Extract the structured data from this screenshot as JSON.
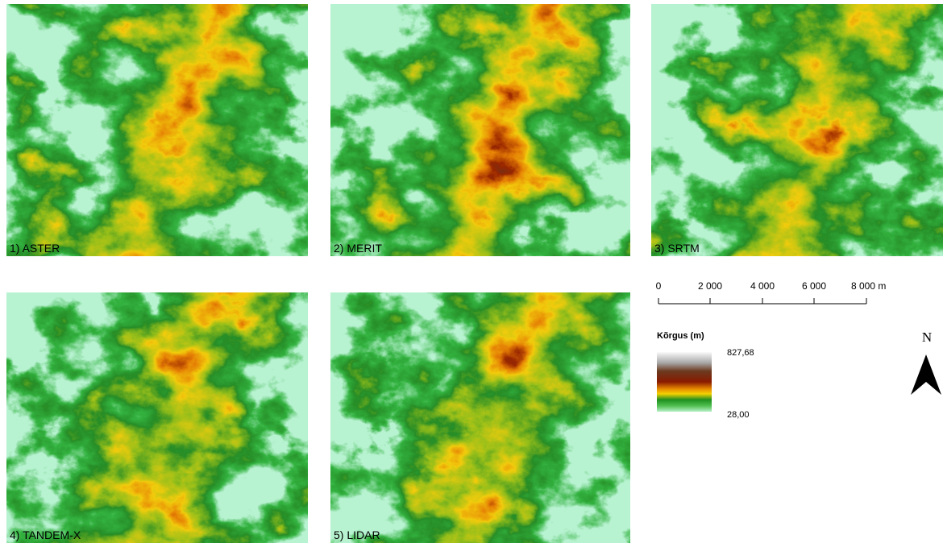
{
  "panels": [
    {
      "label": "1) ASTER"
    },
    {
      "label": "2) MERIT"
    },
    {
      "label": "3) SRTM"
    },
    {
      "label": "4) TANDEM-X"
    },
    {
      "label": "5) LIDAR"
    }
  ],
  "scale_bar": {
    "labels": [
      "0",
      "2 000",
      "4 000",
      "6 000",
      "8 000 m"
    ]
  },
  "legend": {
    "title": "Kõrgus (m)",
    "max": "827,68",
    "min": "28,00"
  },
  "north": "N"
}
